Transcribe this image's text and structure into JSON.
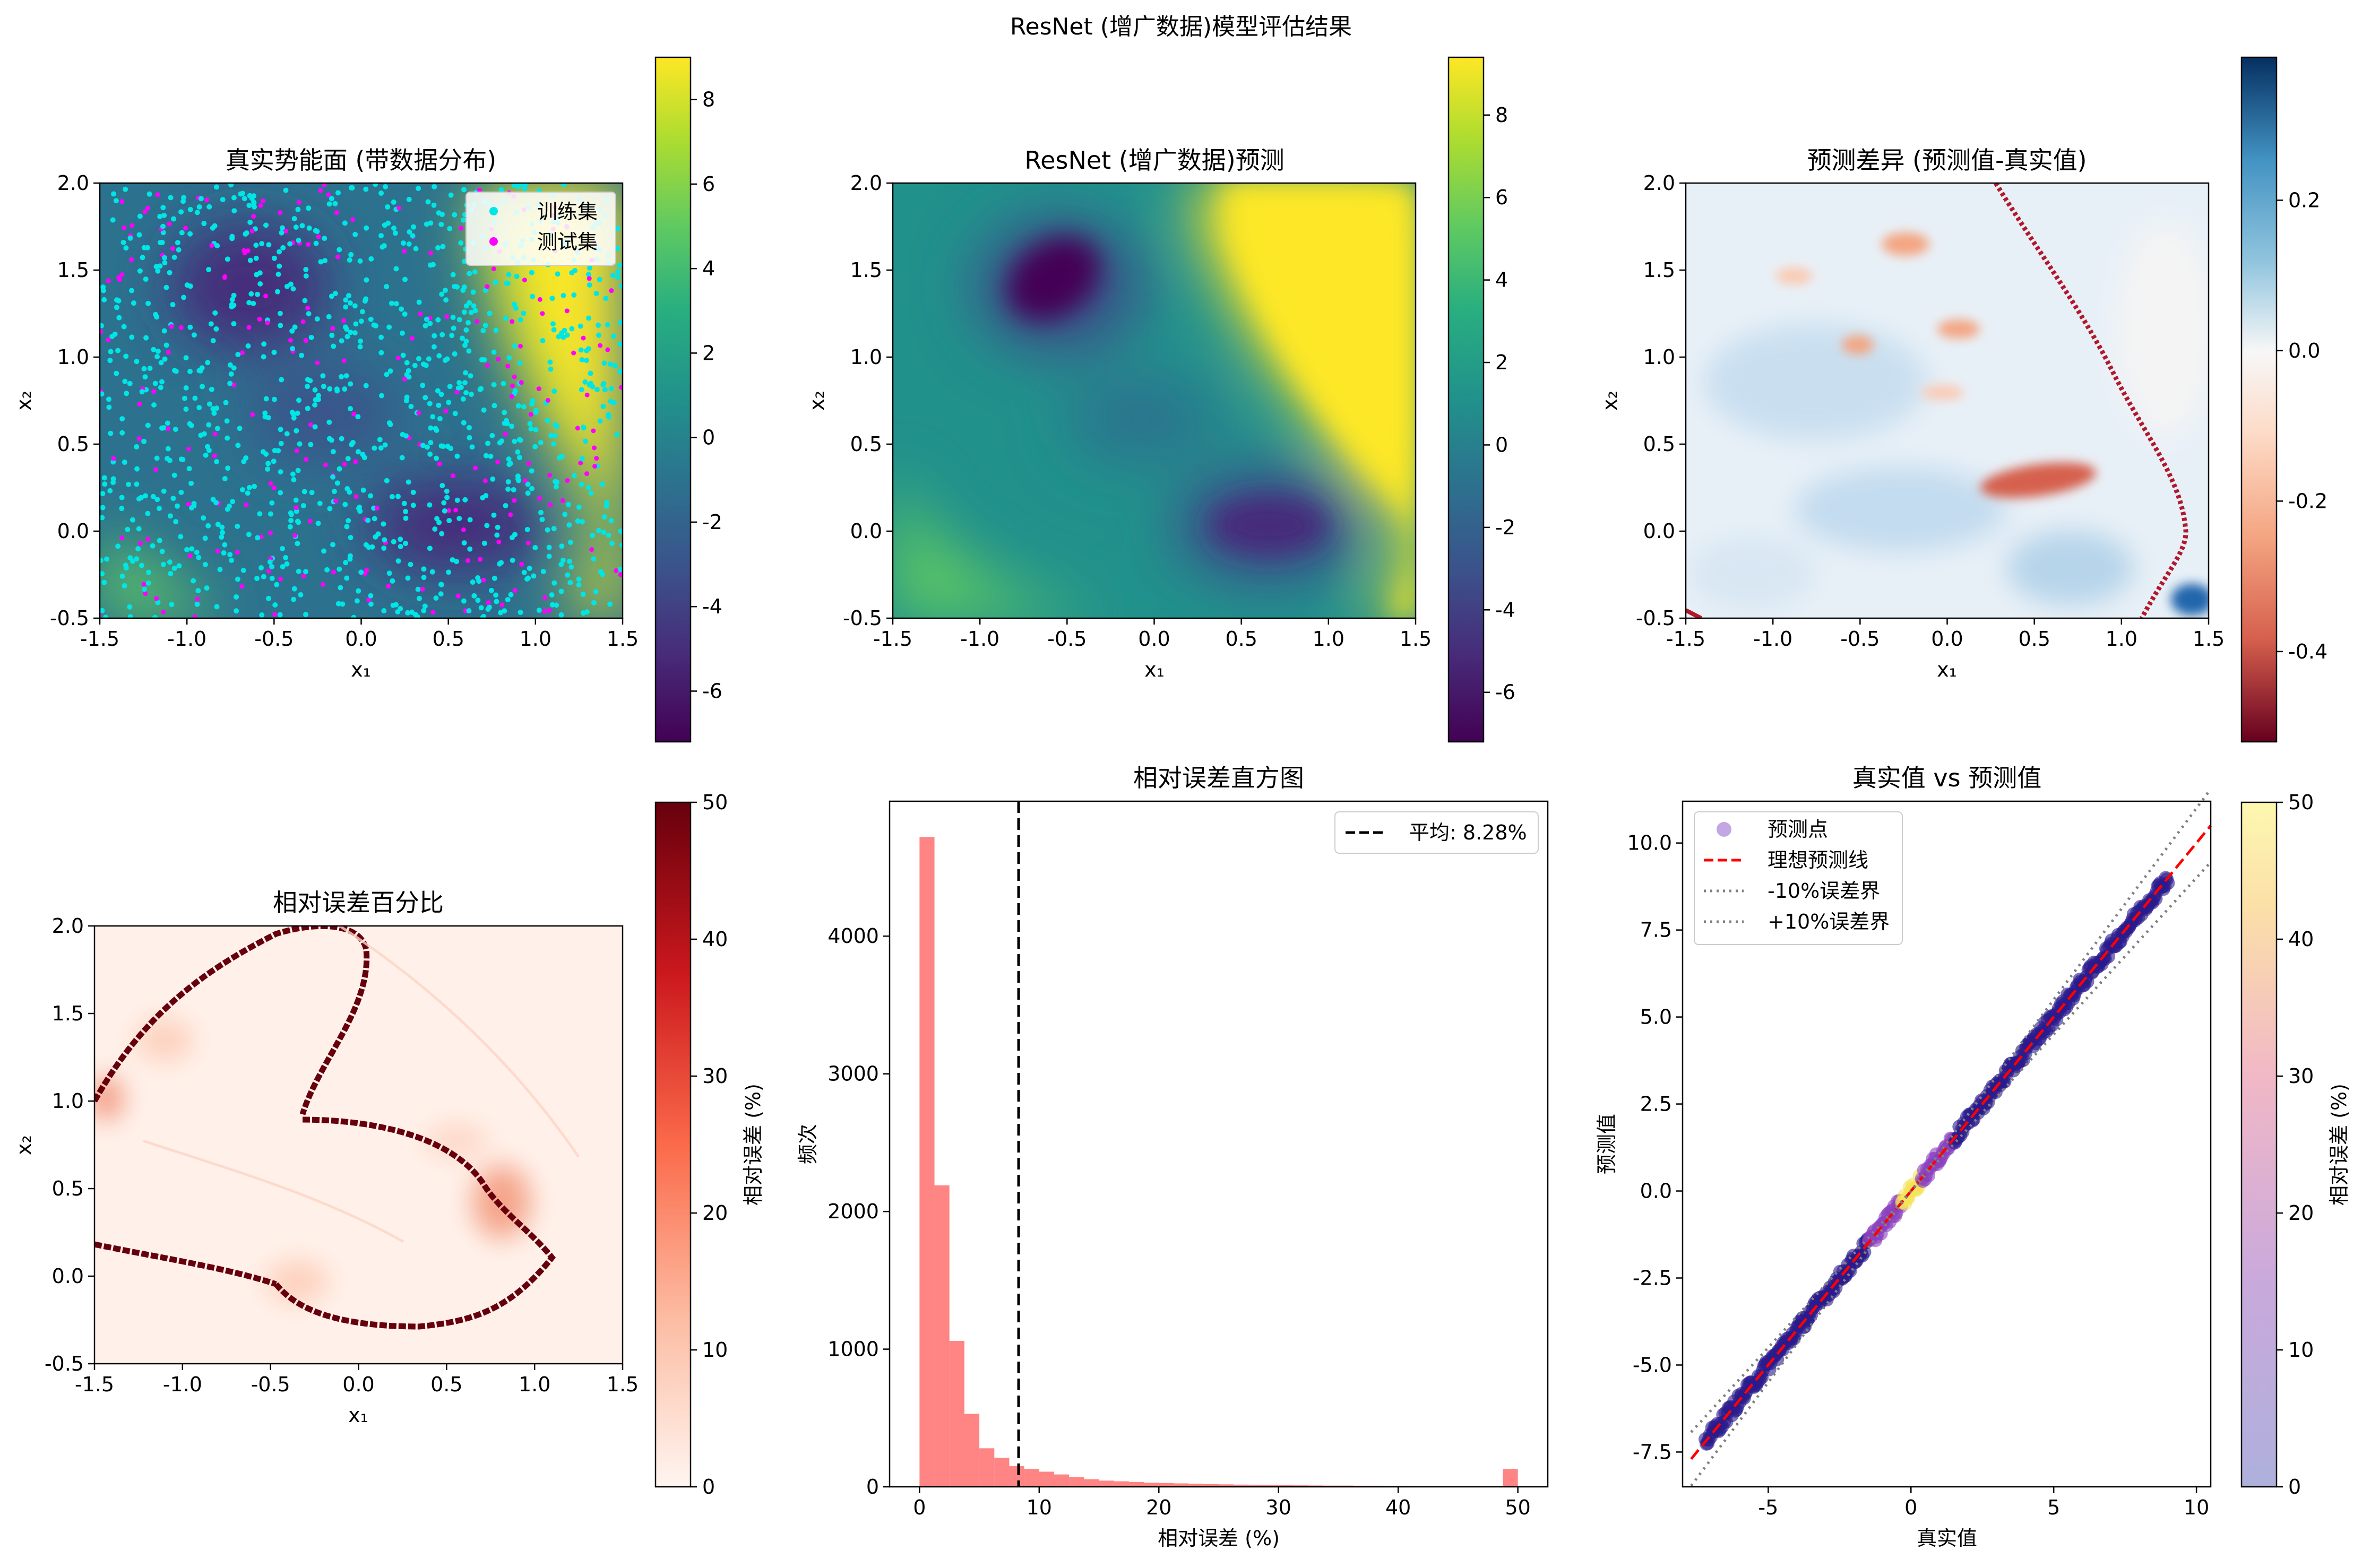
{
  "figure": {
    "title": "ResNet (增广数据)模型评估结果"
  },
  "chart_data": [
    {
      "type": "heatmap",
      "title": "真实势能面 (带数据分布)",
      "xlabel": "x₁",
      "ylabel": "x₂",
      "xlim": [
        -1.5,
        1.5
      ],
      "ylim": [
        -0.5,
        2.0
      ],
      "xticks": [
        "-1.5",
        "-1.0",
        "-0.5",
        "0.0",
        "0.5",
        "1.0",
        "1.5"
      ],
      "yticks": [
        "-0.5",
        "0.0",
        "0.5",
        "1.0",
        "1.5",
        "2.0"
      ],
      "colormap": "viridis",
      "colorbar": {
        "range": [
          -7.2,
          9.0
        ],
        "ticks": [
          "-6",
          "-4",
          "-2",
          "0",
          "2",
          "4",
          "6",
          "8"
        ]
      },
      "legend": {
        "position": "upper right",
        "entries": [
          {
            "label": "训练集",
            "color": "#00e5e5"
          },
          {
            "label": "测试集",
            "color": "#ff00ff"
          }
        ]
      },
      "overlay": "scatter points of training and test samples over the domain"
    },
    {
      "type": "heatmap",
      "title": "ResNet (增广数据)预测",
      "xlabel": "x₁",
      "ylabel": "x₂",
      "xlim": [
        -1.5,
        1.5
      ],
      "ylim": [
        -0.5,
        2.0
      ],
      "xticks": [
        "-1.5",
        "-1.0",
        "-0.5",
        "0.0",
        "0.5",
        "1.0",
        "1.5"
      ],
      "yticks": [
        "-0.5",
        "0.0",
        "0.5",
        "1.0",
        "1.5",
        "2.0"
      ],
      "colormap": "viridis",
      "colorbar": {
        "range": [
          -7.2,
          9.4
        ],
        "ticks": [
          "-6",
          "-4",
          "-2",
          "0",
          "2",
          "4",
          "6",
          "8"
        ]
      }
    },
    {
      "type": "heatmap",
      "title": "预测差异 (预测值-真实值)",
      "xlabel": "x₁",
      "ylabel": "x₂",
      "xlim": [
        -1.5,
        1.5
      ],
      "ylim": [
        -0.5,
        2.0
      ],
      "xticks": [
        "-1.5",
        "-1.0",
        "-0.5",
        "0.0",
        "0.5",
        "1.0",
        "1.5"
      ],
      "yticks": [
        "-0.5",
        "0.0",
        "0.5",
        "1.0",
        "1.5",
        "2.0"
      ],
      "colormap": "RdBu",
      "colorbar": {
        "range": [
          -0.52,
          0.39
        ],
        "ticks": [
          "-0.4",
          "-0.2",
          "0.0",
          "0.2"
        ]
      }
    },
    {
      "type": "heatmap",
      "title": "相对误差百分比",
      "xlabel": "x₁",
      "ylabel": "x₂",
      "xlim": [
        -1.5,
        1.5
      ],
      "ylim": [
        -0.5,
        2.0
      ],
      "xticks": [
        "-1.5",
        "-1.0",
        "-0.5",
        "0.0",
        "0.5",
        "1.0",
        "1.5"
      ],
      "yticks": [
        "-0.5",
        "0.0",
        "0.5",
        "1.0",
        "1.5",
        "2.0"
      ],
      "colormap": "Reds",
      "colorbar": {
        "range": [
          0,
          50
        ],
        "ticks": [
          "0",
          "10",
          "20",
          "30",
          "40",
          "50"
        ],
        "label": "相对误差 (%)"
      }
    },
    {
      "type": "bar",
      "title": "相对误差直方图",
      "xlabel": "相对误差 (%)",
      "ylabel": "频次",
      "xlim": [
        -2.5,
        52.5
      ],
      "ylim": [
        0,
        4980
      ],
      "xticks": [
        "0",
        "10",
        "20",
        "30",
        "40",
        "50"
      ],
      "yticks": [
        "0",
        "1000",
        "2000",
        "3000",
        "4000"
      ],
      "bin_edges": [
        0,
        1.25,
        2.5,
        3.75,
        5,
        6.25,
        7.5,
        8.75,
        10,
        11.25,
        12.5,
        13.75,
        15,
        16.25,
        17.5,
        18.75,
        20,
        21.25,
        22.5,
        23.75,
        25,
        26.25,
        27.5,
        28.75,
        30,
        31.25,
        32.5,
        33.75,
        35,
        36.25,
        37.5,
        38.75,
        40,
        41.25,
        42.5,
        43.75,
        45,
        46.25,
        47.5,
        48.75,
        50
      ],
      "values": [
        4720,
        2190,
        1060,
        530,
        280,
        210,
        150,
        130,
        110,
        90,
        70,
        55,
        45,
        40,
        35,
        30,
        28,
        25,
        22,
        20,
        18,
        16,
        15,
        14,
        12,
        11,
        10,
        9,
        9,
        8,
        8,
        7,
        7,
        6,
        6,
        5,
        5,
        5,
        5,
        130
      ],
      "color": "#ff5050",
      "reference_line": {
        "x": 8.28,
        "label": "平均: 8.28%"
      },
      "legend": {
        "position": "upper right"
      }
    },
    {
      "type": "scatter",
      "title": "真实值 vs 预测值",
      "xlabel": "真实值",
      "ylabel": "预测值",
      "xlim": [
        -8.0,
        10.5
      ],
      "ylim": [
        -8.5,
        11.2
      ],
      "xticks": [
        "-5",
        "0",
        "5",
        "10"
      ],
      "yticks": [
        "-7.5",
        "-5.0",
        "-2.5",
        "0.0",
        "2.5",
        "5.0",
        "7.5",
        "10.0"
      ],
      "points_range": [
        -7.2,
        9.0
      ],
      "colorbar": {
        "range": [
          0,
          50
        ],
        "ticks": [
          "0",
          "10",
          "20",
          "30",
          "40",
          "50"
        ],
        "label": "相对误差 (%)",
        "colormap": "plasma (alpha)"
      },
      "lines": [
        {
          "name": "理想预测线",
          "slope": 1.0,
          "style": "dashed",
          "color": "#ff0000"
        },
        {
          "name": "-10%误差界",
          "slope": 0.9,
          "style": "dotted",
          "color": "#808080"
        },
        {
          "name": "+10%误差界",
          "slope": 1.1,
          "style": "dotted",
          "color": "#808080"
        }
      ],
      "legend": {
        "position": "upper left",
        "entries": [
          {
            "label": "预测点",
            "color": "#b088d8"
          },
          {
            "label": "理想预测线",
            "color": "#ff0000"
          },
          {
            "label": "-10%误差界",
            "color": "#808080"
          },
          {
            "label": "+10%误差界",
            "color": "#808080"
          }
        ]
      }
    }
  ]
}
